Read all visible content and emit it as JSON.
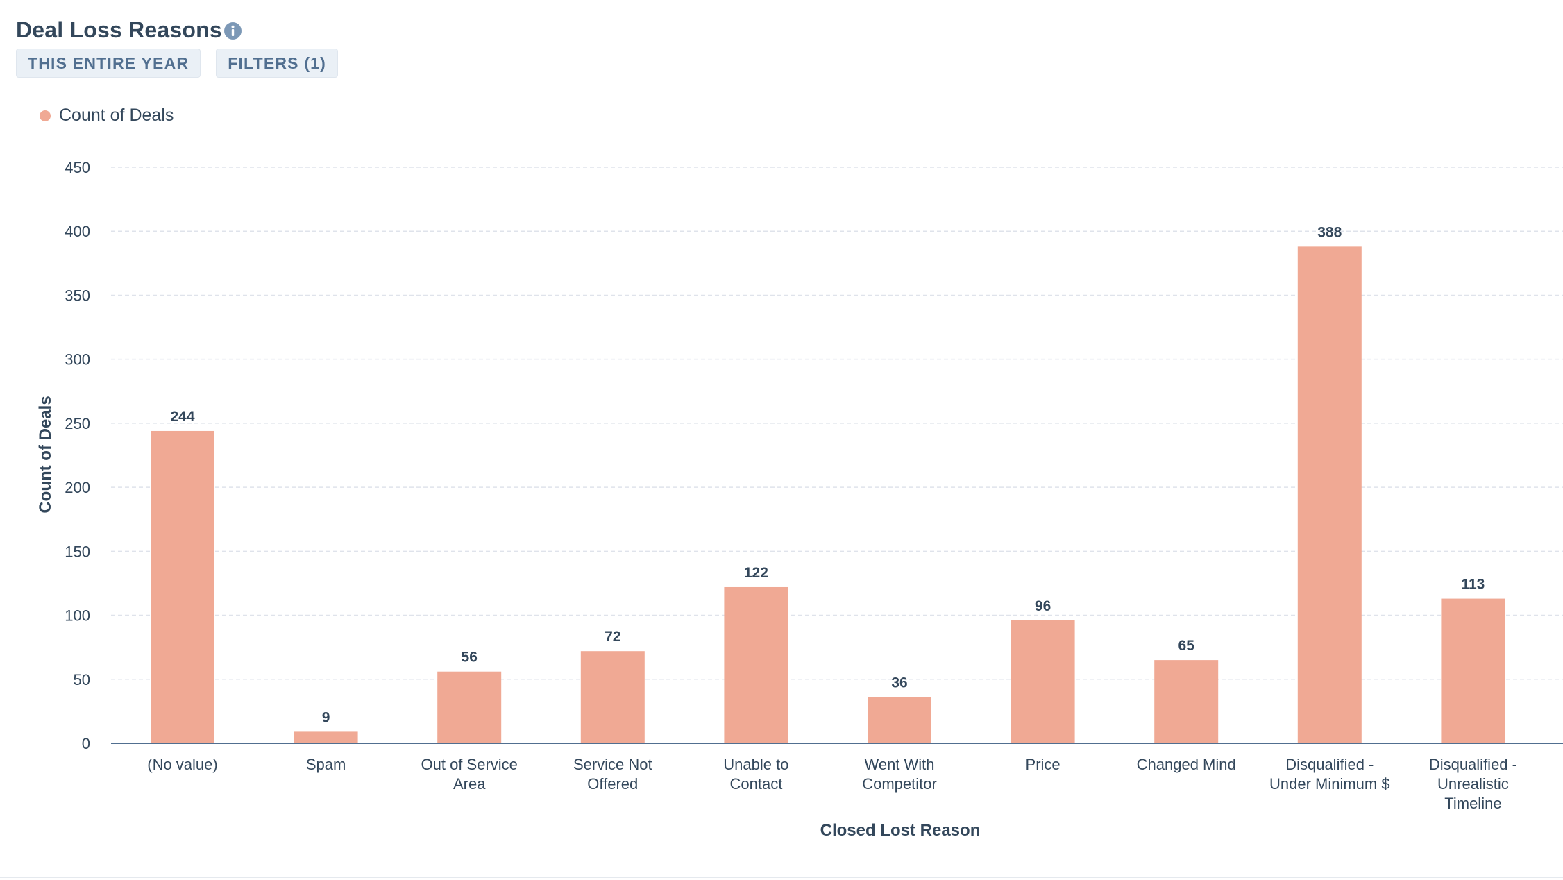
{
  "header": {
    "title": "Deal Loss Reasons",
    "chips": [
      {
        "label": "THIS ENTIRE YEAR"
      },
      {
        "label": "FILTERS (1)"
      }
    ]
  },
  "legend": {
    "label": "Count of Deals"
  },
  "colors": {
    "bar": "#f0a994",
    "text": "#33475b",
    "grid": "#dfe3eb",
    "axis": "#516f90",
    "info_icon": "#7c98b6"
  },
  "chart_data": {
    "type": "bar",
    "title": "Deal Loss Reasons",
    "xlabel": "Closed Lost Reason",
    "ylabel": "Count of Deals",
    "ylim": [
      0,
      450
    ],
    "yticks": [
      0,
      50,
      100,
      150,
      200,
      250,
      300,
      350,
      400,
      450
    ],
    "grid": true,
    "legend_position": "top-left",
    "categories": [
      "(No value)",
      "Spam",
      "Out of Service Area",
      "Service Not Offered",
      "Unable to Contact",
      "Went With Competitor",
      "Price",
      "Changed Mind",
      "Disqualified - Under Minimum $",
      "Disqualified - Unrealistic Timeline"
    ],
    "category_label_lines": [
      [
        "(No value)"
      ],
      [
        "Spam"
      ],
      [
        "Out of Service",
        "Area"
      ],
      [
        "Service Not",
        "Offered"
      ],
      [
        "Unable to",
        "Contact"
      ],
      [
        "Went With",
        "Competitor"
      ],
      [
        "Price"
      ],
      [
        "Changed Mind"
      ],
      [
        "Disqualified -",
        "Under Minimum $"
      ],
      [
        "Disqualified -",
        "Unrealistic",
        "Timeline"
      ]
    ],
    "series": [
      {
        "name": "Count of Deals",
        "values": [
          244,
          9,
          56,
          72,
          122,
          36,
          96,
          65,
          388,
          113
        ]
      }
    ]
  }
}
